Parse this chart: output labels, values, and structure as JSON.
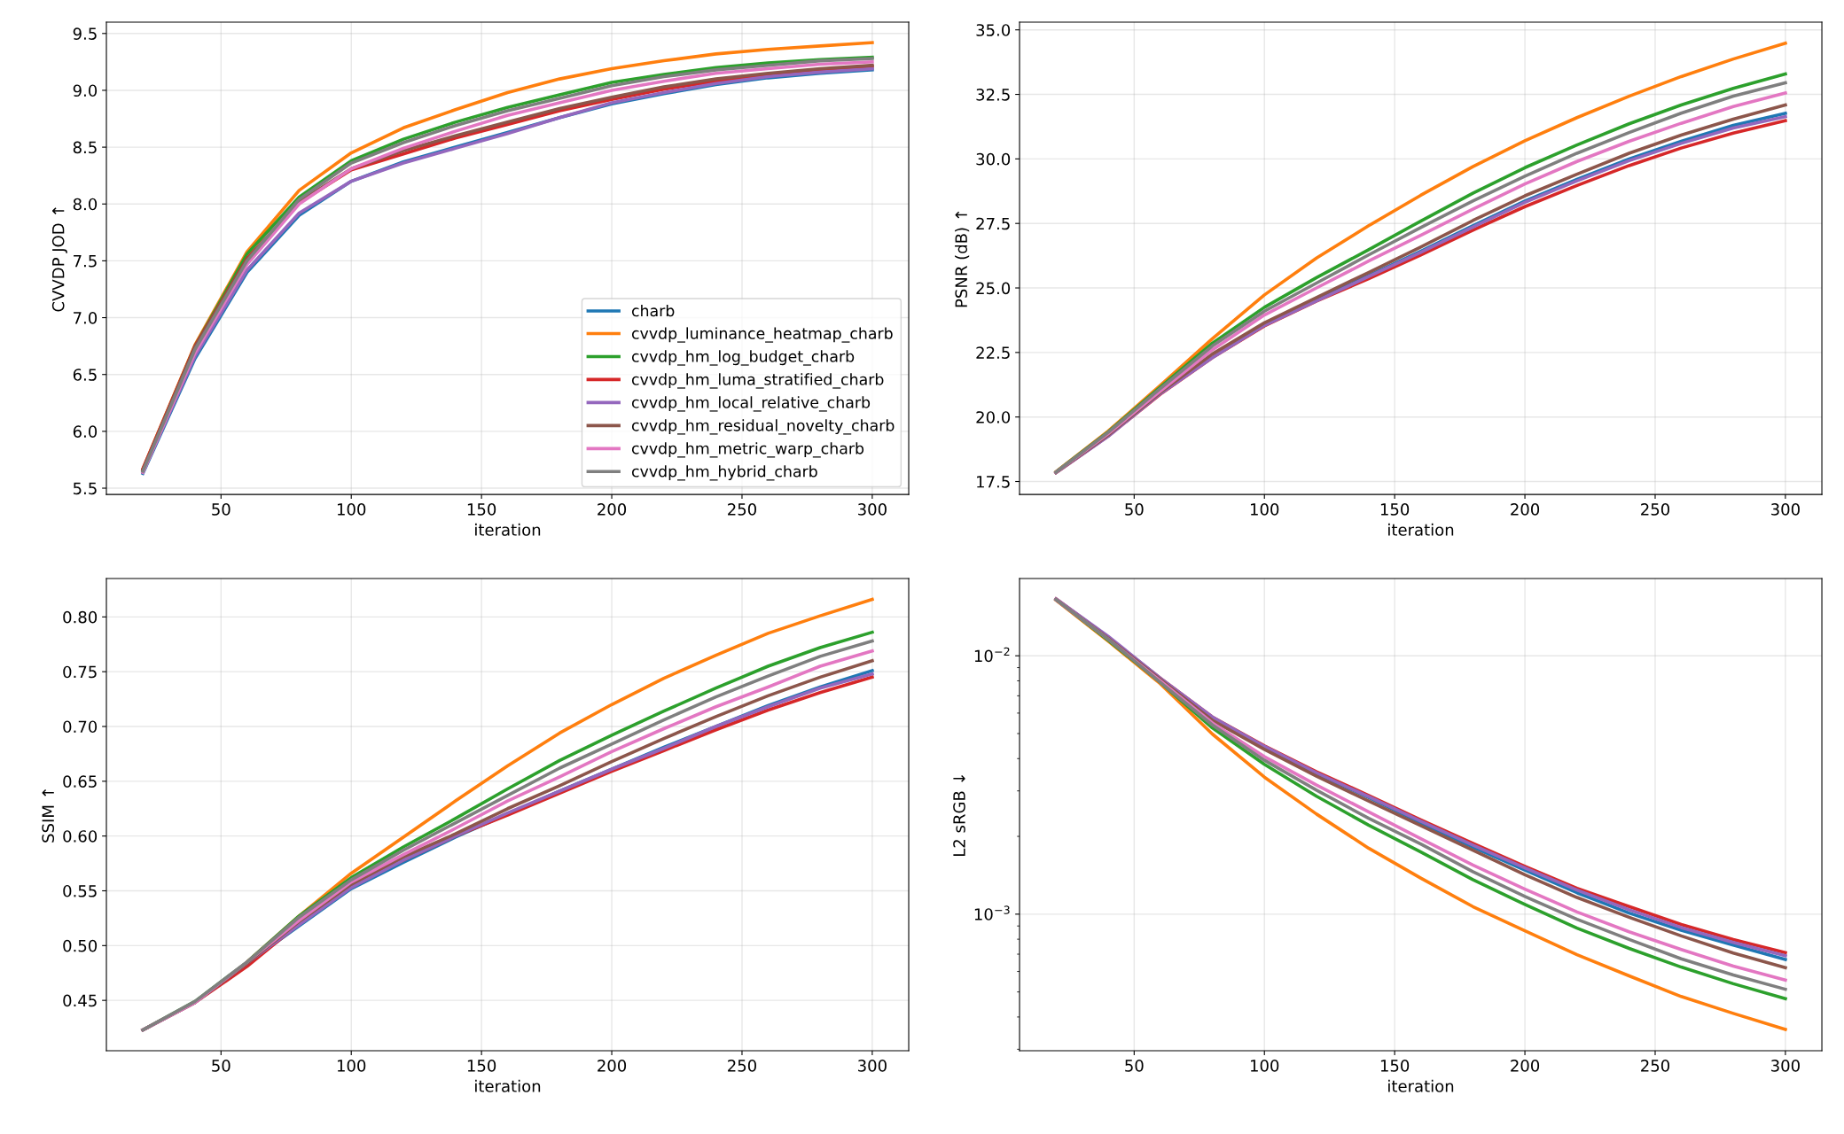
{
  "chart_data": [
    {
      "type": "line",
      "xlabel": "iteration",
      "ylabel": "CVVDP JOD ↑",
      "x": [
        20,
        40,
        60,
        80,
        100,
        120,
        140,
        160,
        180,
        200,
        220,
        240,
        260,
        280,
        300
      ],
      "xlim": [
        6,
        314
      ],
      "xticks": [
        50,
        100,
        150,
        200,
        250,
        300
      ],
      "ylim": [
        5.445,
        9.6
      ],
      "yticks": [
        5.5,
        {
          "value": 6,
          "label": "6.0"
        },
        6.5,
        {
          "value": 7,
          "label": "7.0"
        },
        7.5,
        {
          "value": 8,
          "label": "8.0"
        },
        8.5,
        {
          "value": 9,
          "label": "9.0"
        },
        9.5
      ],
      "grid": true,
      "legend": "bottom right",
      "series": [
        {
          "name": "charb",
          "color": "#1f77b4",
          "values": [
            5.63,
            6.64,
            7.4,
            7.9,
            8.2,
            8.37,
            8.5,
            8.63,
            8.76,
            8.88,
            8.97,
            9.05,
            9.11,
            9.15,
            9.18
          ]
        },
        {
          "name": "cvvdp_luminance_heatmap_charb",
          "color": "#ff7f0e",
          "values": [
            5.67,
            6.76,
            7.58,
            8.12,
            8.45,
            8.67,
            8.83,
            8.98,
            9.1,
            9.19,
            9.26,
            9.32,
            9.36,
            9.39,
            9.42
          ]
        },
        {
          "name": "cvvdp_hm_log_budget_charb",
          "color": "#2ca02c",
          "values": [
            5.66,
            6.75,
            7.56,
            8.06,
            8.38,
            8.57,
            8.72,
            8.85,
            8.96,
            9.07,
            9.14,
            9.2,
            9.24,
            9.27,
            9.29
          ]
        },
        {
          "name": "cvvdp_hm_luma_stratified_charb",
          "color": "#d62728",
          "values": [
            5.67,
            6.75,
            7.52,
            8.01,
            8.3,
            8.44,
            8.58,
            8.7,
            8.82,
            8.92,
            9.01,
            9.08,
            9.14,
            9.18,
            9.21
          ]
        },
        {
          "name": "cvvdp_hm_local_relative_charb",
          "color": "#9467bd",
          "values": [
            5.64,
            6.66,
            7.42,
            7.92,
            8.2,
            8.36,
            8.49,
            8.62,
            8.76,
            8.89,
            8.98,
            9.06,
            9.12,
            9.16,
            9.19
          ]
        },
        {
          "name": "cvvdp_hm_residual_novelty_charb",
          "color": "#8c564b",
          "values": [
            5.66,
            6.74,
            7.51,
            8.02,
            8.31,
            8.47,
            8.6,
            8.72,
            8.84,
            8.94,
            9.03,
            9.1,
            9.15,
            9.19,
            9.22
          ]
        },
        {
          "name": "cvvdp_hm_metric_warp_charb",
          "color": "#e377c2",
          "values": [
            5.64,
            6.69,
            7.47,
            8.0,
            8.31,
            8.49,
            8.64,
            8.78,
            8.89,
            9.0,
            9.08,
            9.15,
            9.19,
            9.23,
            9.25
          ]
        },
        {
          "name": "cvvdp_hm_hybrid_charb",
          "color": "#7f7f7f",
          "values": [
            5.65,
            6.72,
            7.5,
            8.04,
            8.36,
            8.54,
            8.69,
            8.82,
            8.93,
            9.04,
            9.12,
            9.18,
            9.22,
            9.26,
            9.28
          ]
        }
      ]
    },
    {
      "type": "line",
      "xlabel": "iteration",
      "ylabel": "PSNR (dB) ↑",
      "x": [
        20,
        40,
        60,
        80,
        100,
        120,
        140,
        160,
        180,
        200,
        220,
        240,
        260,
        280,
        300
      ],
      "xlim": [
        6,
        314
      ],
      "xticks": [
        50,
        100,
        150,
        200,
        250,
        300
      ],
      "ylim": [
        17.0,
        35.3
      ],
      "yticks": [
        17.5,
        {
          "value": 20,
          "label": "20.0"
        },
        22.5,
        {
          "value": 25,
          "label": "25.0"
        },
        27.5,
        {
          "value": 30,
          "label": "30.0"
        },
        32.5,
        {
          "value": 35,
          "label": "35.0"
        }
      ],
      "grid": true,
      "series": [
        {
          "color": "#1f77b4",
          "values": [
            null,
            null,
            null,
            null,
            null,
            24.53,
            25.48,
            26.42,
            27.41,
            28.37,
            29.21,
            30.0,
            30.68,
            31.3,
            31.77
          ]
        },
        {
          "color": "#ff7f0e",
          "values": [
            17.88,
            19.45,
            21.22,
            23.03,
            24.73,
            26.16,
            27.41,
            28.59,
            29.7,
            30.7,
            31.6,
            32.43,
            33.19,
            33.87,
            34.48
          ]
        },
        {
          "color": "#2ca02c",
          "values": [
            17.87,
            19.42,
            21.15,
            22.86,
            24.25,
            25.4,
            26.48,
            27.59,
            28.67,
            29.66,
            30.54,
            31.36,
            32.09,
            32.73,
            33.29
          ]
        },
        {
          "color": "#d62728",
          "values": [
            17.84,
            19.26,
            20.88,
            22.3,
            23.53,
            24.49,
            25.36,
            26.28,
            27.24,
            28.15,
            28.97,
            29.74,
            30.42,
            31.0,
            31.48
          ]
        },
        {
          "color": "#9467bd",
          "values": [
            17.84,
            19.25,
            20.9,
            22.3,
            23.55,
            24.5,
            25.44,
            26.38,
            27.36,
            28.32,
            29.15,
            29.93,
            30.6,
            31.2,
            31.64
          ]
        },
        {
          "color": "#8c564b",
          "values": [
            17.85,
            19.3,
            20.95,
            22.44,
            23.65,
            24.63,
            25.6,
            26.58,
            27.61,
            28.57,
            29.41,
            30.22,
            30.92,
            31.54,
            32.09
          ]
        },
        {
          "color": "#e377c2",
          "values": [
            17.86,
            19.35,
            21.0,
            22.6,
            23.95,
            25.0,
            26.04,
            27.04,
            28.05,
            29.03,
            29.9,
            30.68,
            31.38,
            32.03,
            32.55
          ]
        },
        {
          "color": "#7f7f7f",
          "values": [
            17.86,
            19.4,
            21.1,
            22.75,
            24.1,
            25.19,
            26.28,
            27.34,
            28.37,
            29.33,
            30.22,
            31.02,
            31.77,
            32.43,
            32.95
          ]
        }
      ]
    },
    {
      "type": "line",
      "xlabel": "iteration",
      "ylabel": "SSIM ↑",
      "x": [
        20,
        40,
        60,
        80,
        100,
        120,
        140,
        160,
        180,
        200,
        220,
        240,
        260,
        280,
        300
      ],
      "xlim": [
        6,
        314
      ],
      "xticks": [
        50,
        100,
        150,
        200,
        250,
        300
      ],
      "ylim": [
        0.404,
        0.835
      ],
      "yticks": [
        0.45,
        {
          "value": 0.5,
          "label": "0.50"
        },
        0.55,
        {
          "value": 0.6,
          "label": "0.60"
        },
        0.65,
        {
          "value": 0.7,
          "label": "0.70"
        },
        0.75,
        {
          "value": 0.8,
          "label": "0.80"
        }
      ],
      "grid": true,
      "series": [
        {
          "color": "#1f77b4",
          "values": [
            null,
            null,
            0.484,
            0.518,
            0.552,
            0.576,
            0.599,
            0.62,
            0.641,
            0.661,
            0.681,
            0.7,
            0.719,
            0.736,
            0.751
          ]
        },
        {
          "color": "#ff7f0e",
          "values": [
            null,
            null,
            0.485,
            0.527,
            0.566,
            0.599,
            0.632,
            0.664,
            0.694,
            0.72,
            0.744,
            0.765,
            0.785,
            0.801,
            0.816
          ]
        },
        {
          "color": "#2ca02c",
          "values": [
            0.423,
            0.449,
            0.485,
            0.527,
            0.562,
            0.59,
            0.616,
            0.643,
            0.669,
            0.692,
            0.714,
            0.735,
            0.755,
            0.772,
            0.786
          ]
        },
        {
          "color": "#d62728",
          "values": [
            0.423,
            0.448,
            0.481,
            0.52,
            0.555,
            0.578,
            0.6,
            0.619,
            0.639,
            0.659,
            0.678,
            0.697,
            0.715,
            0.731,
            0.745
          ]
        },
        {
          "color": "#9467bd",
          "values": [
            0.423,
            0.448,
            0.484,
            0.519,
            0.553,
            0.578,
            0.6,
            0.621,
            0.641,
            0.661,
            0.68,
            0.7,
            0.718,
            0.735,
            0.748
          ]
        },
        {
          "color": "#8c564b",
          "values": [
            0.423,
            0.448,
            0.484,
            0.522,
            0.556,
            0.581,
            0.602,
            0.625,
            0.646,
            0.668,
            0.689,
            0.709,
            0.728,
            0.745,
            0.76
          ]
        },
        {
          "color": "#e377c2",
          "values": [
            0.423,
            0.448,
            0.485,
            0.523,
            0.558,
            0.583,
            0.607,
            0.632,
            0.654,
            0.677,
            0.698,
            0.718,
            0.736,
            0.755,
            0.769
          ]
        },
        {
          "color": "#7f7f7f",
          "values": [
            0.423,
            0.449,
            0.485,
            0.526,
            0.56,
            0.587,
            0.612,
            0.637,
            0.662,
            0.684,
            0.706,
            0.727,
            0.746,
            0.764,
            0.778
          ]
        }
      ]
    },
    {
      "type": "line",
      "xlabel": "iteration",
      "ylabel": "L2 sRGB ↓",
      "log": "y",
      "x": [
        20,
        40,
        60,
        80,
        100,
        120,
        140,
        160,
        180,
        200,
        220,
        240,
        260,
        280,
        300
      ],
      "xlim": [
        6,
        314
      ],
      "xticks": [
        50,
        100,
        150,
        200,
        250,
        300
      ],
      "ylim": [
        0.000296,
        0.0199
      ],
      "yticks": [
        {
          "value": 0.01,
          "label": "10$^{−2}$"
        },
        {
          "value": 0.001,
          "label": "10$^{−3}$"
        },
        {
          "value": 0.0003,
          "label": null
        },
        {
          "value": 0.0004,
          "label": null
        },
        {
          "value": 0.0005,
          "label": null
        },
        {
          "value": 0.0006,
          "label": null
        },
        {
          "value": 0.0007,
          "label": null
        },
        {
          "value": 0.0008,
          "label": null
        },
        {
          "value": 0.0009,
          "label": null
        },
        {
          "value": 0.002,
          "label": null
        },
        {
          "value": 0.003,
          "label": null
        },
        {
          "value": 0.004,
          "label": null
        },
        {
          "value": 0.005,
          "label": null
        },
        {
          "value": 0.006,
          "label": null
        },
        {
          "value": 0.007,
          "label": null
        },
        {
          "value": 0.008,
          "label": null
        },
        {
          "value": 0.009,
          "label": null
        }
      ],
      "grid": true,
      "series": [
        {
          "color": "#1f77b4",
          "values": [
            null,
            null,
            null,
            null,
            0.00445,
            0.0035,
            0.00283,
            0.00226,
            0.00182,
            0.00148,
            0.00121,
            0.00101,
            0.000867,
            0.000759,
            0.000668
          ]
        },
        {
          "color": "#ff7f0e",
          "values": [
            0.0164,
            0.0114,
            0.0078,
            0.00498,
            0.00339,
            0.00244,
            0.0018,
            0.00138,
            0.00107,
            0.000863,
            0.000697,
            0.000577,
            0.00048,
            0.000413,
            0.000358
          ]
        },
        {
          "color": "#2ca02c",
          "values": [
            0.0165,
            0.0115,
            0.0079,
            0.00526,
            0.0038,
            0.00286,
            0.00221,
            0.00174,
            0.00136,
            0.00109,
            0.000883,
            0.000737,
            0.000624,
            0.000538,
            0.000471
          ]
        },
        {
          "color": "#d62728",
          "values": [
            0.0166,
            0.0118,
            0.0082,
            0.0058,
            0.00448,
            0.00356,
            0.00288,
            0.00232,
            0.00188,
            0.00153,
            0.00126,
            0.00107,
            0.000912,
            0.000798,
            0.00071
          ]
        },
        {
          "color": "#9467bd",
          "values": [
            0.0166,
            0.0119,
            0.0082,
            0.0058,
            0.00446,
            0.00352,
            0.00285,
            0.00229,
            0.00185,
            0.00151,
            0.00124,
            0.00104,
            0.000888,
            0.000778,
            0.00069
          ]
        },
        {
          "color": "#8c564b",
          "values": [
            0.0165,
            0.0117,
            0.0081,
            0.00563,
            0.00434,
            0.00342,
            0.00274,
            0.0022,
            0.00177,
            0.00142,
            0.00116,
            0.000973,
            0.000824,
            0.000707,
            0.000621
          ]
        },
        {
          "color": "#e377c2",
          "values": [
            0.0165,
            0.0116,
            0.008,
            0.0055,
            0.00407,
            0.00316,
            0.00249,
            0.00196,
            0.00155,
            0.00125,
            0.00102,
            0.000855,
            0.00073,
            0.000629,
            0.000556
          ]
        },
        {
          "color": "#7f7f7f",
          "values": [
            0.0165,
            0.0116,
            0.0079,
            0.0054,
            0.00394,
            0.00302,
            0.00235,
            0.00187,
            0.00146,
            0.00117,
            0.000955,
            0.000798,
            0.000672,
            0.000582,
            0.000512
          ]
        }
      ]
    }
  ]
}
